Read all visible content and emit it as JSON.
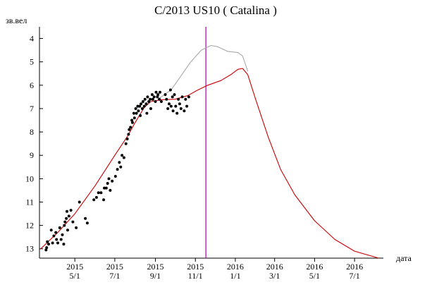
{
  "chart_data": {
    "type": "line",
    "title": "C/2013 US10 ( Catalina )",
    "ylabel": "зв.вел",
    "xlabel": "дата",
    "y_axis": {
      "min": 3.5,
      "max": 13.4,
      "inverted": true,
      "ticks": [
        4,
        5,
        6,
        7,
        8,
        9,
        10,
        11,
        12,
        13
      ]
    },
    "x_axis": {
      "min": "2015-03-08",
      "max": "2016-08-14",
      "ticks": [
        {
          "date": "2015-05-01",
          "year": "2015",
          "md": "5/1"
        },
        {
          "date": "2015-07-01",
          "year": "2015",
          "md": "7/1"
        },
        {
          "date": "2015-09-01",
          "year": "2015",
          "md": "9/1"
        },
        {
          "date": "2015-11-01",
          "year": "2015",
          "md": "11/1"
        },
        {
          "date": "2016-01-01",
          "year": "2016",
          "md": "1/1"
        },
        {
          "date": "2016-03-01",
          "year": "2016",
          "md": "3/1"
        },
        {
          "date": "2016-05-01",
          "year": "2016",
          "md": "5/1"
        },
        {
          "date": "2016-07-01",
          "year": "2016",
          "md": "7/1"
        }
      ]
    },
    "marker_line": {
      "date": "2015-11-17",
      "color": "#b000b0"
    },
    "series": [
      {
        "color": "#cc0000",
        "style": "line",
        "points": [
          [
            "2015-03-10",
            13.0
          ],
          [
            "2015-04-05",
            12.3
          ],
          [
            "2015-05-01",
            11.5
          ],
          [
            "2015-06-01",
            10.3
          ],
          [
            "2015-07-01",
            9.0
          ],
          [
            "2015-07-20",
            8.2
          ],
          [
            "2015-08-01",
            7.6
          ],
          [
            "2015-08-15",
            6.95
          ],
          [
            "2015-08-25",
            6.7
          ],
          [
            "2015-09-10",
            6.62
          ],
          [
            "2015-10-01",
            6.6
          ],
          [
            "2015-10-20",
            6.45
          ],
          [
            "2015-11-05",
            6.2
          ],
          [
            "2015-11-20",
            6.0
          ],
          [
            "2015-12-10",
            5.8
          ],
          [
            "2015-12-25",
            5.55
          ],
          [
            "2016-01-05",
            5.32
          ],
          [
            "2016-01-12",
            5.28
          ],
          [
            "2016-01-20",
            5.55
          ],
          [
            "2016-02-01",
            6.6
          ],
          [
            "2016-02-20",
            8.2
          ],
          [
            "2016-03-10",
            9.6
          ],
          [
            "2016-04-01",
            10.7
          ],
          [
            "2016-05-01",
            11.8
          ],
          [
            "2016-06-01",
            12.6
          ],
          [
            "2016-07-01",
            13.1
          ],
          [
            "2016-08-07",
            13.4
          ]
        ]
      },
      {
        "color": "#a8a8a8",
        "style": "line",
        "points": [
          [
            "2015-09-05",
            6.6
          ],
          [
            "2015-09-25",
            6.2
          ],
          [
            "2015-10-10",
            5.6
          ],
          [
            "2015-10-25",
            5.0
          ],
          [
            "2015-11-10",
            4.5
          ],
          [
            "2015-11-25",
            4.3
          ],
          [
            "2015-12-05",
            4.35
          ],
          [
            "2015-12-20",
            4.55
          ],
          [
            "2016-01-05",
            4.6
          ],
          [
            "2016-01-12",
            4.75
          ],
          [
            "2016-01-20",
            5.4
          ]
        ]
      },
      {
        "color": "#000000",
        "style": "dots",
        "points": [
          [
            "2015-03-18",
            13.05
          ],
          [
            "2015-03-19",
            12.95
          ],
          [
            "2015-03-20",
            12.7
          ],
          [
            "2015-03-22",
            12.8
          ],
          [
            "2015-03-26",
            12.2
          ],
          [
            "2015-03-28",
            12.75
          ],
          [
            "2015-03-30",
            12.45
          ],
          [
            "2015-04-02",
            12.3
          ],
          [
            "2015-04-03",
            12.6
          ],
          [
            "2015-04-05",
            12.75
          ],
          [
            "2015-04-08",
            12.1
          ],
          [
            "2015-04-10",
            12.6
          ],
          [
            "2015-04-12",
            12.4
          ],
          [
            "2015-04-14",
            12.8
          ],
          [
            "2015-04-15",
            12.0
          ],
          [
            "2015-04-16",
            11.85
          ],
          [
            "2015-04-18",
            11.7
          ],
          [
            "2015-04-19",
            11.4
          ],
          [
            "2015-04-20",
            12.2
          ],
          [
            "2015-04-22",
            11.6
          ],
          [
            "2015-04-25",
            11.35
          ],
          [
            "2015-04-28",
            11.85
          ],
          [
            "2015-05-03",
            12.1
          ],
          [
            "2015-05-08",
            11.0
          ],
          [
            "2015-05-17",
            11.7
          ],
          [
            "2015-05-20",
            11.9
          ],
          [
            "2015-05-30",
            10.9
          ],
          [
            "2015-06-03",
            10.8
          ],
          [
            "2015-06-06",
            10.6
          ],
          [
            "2015-06-10",
            10.6
          ],
          [
            "2015-06-14",
            10.9
          ],
          [
            "2015-06-15",
            10.4
          ],
          [
            "2015-06-18",
            10.4
          ],
          [
            "2015-06-20",
            10.2
          ],
          [
            "2015-06-22",
            10.0
          ],
          [
            "2015-06-24",
            10.5
          ],
          [
            "2015-06-27",
            10.1
          ],
          [
            "2015-07-02",
            9.9
          ],
          [
            "2015-07-05",
            9.6
          ],
          [
            "2015-07-08",
            9.3
          ],
          [
            "2015-07-10",
            9.5
          ],
          [
            "2015-07-12",
            9.0
          ],
          [
            "2015-07-15",
            9.1
          ],
          [
            "2015-07-18",
            8.5
          ],
          [
            "2015-07-20",
            8.3
          ],
          [
            "2015-07-22",
            8.1
          ],
          [
            "2015-07-23",
            7.9
          ],
          [
            "2015-07-25",
            7.8
          ],
          [
            "2015-07-27",
            7.5
          ],
          [
            "2015-07-28",
            7.6
          ],
          [
            "2015-07-30",
            7.2
          ],
          [
            "2015-07-31",
            7.4
          ],
          [
            "2015-08-02",
            7.0
          ],
          [
            "2015-08-03",
            7.2
          ],
          [
            "2015-08-05",
            6.9
          ],
          [
            "2015-08-06",
            7.1
          ],
          [
            "2015-08-08",
            6.9
          ],
          [
            "2015-08-09",
            7.3
          ],
          [
            "2015-08-10",
            6.8
          ],
          [
            "2015-08-12",
            7.0
          ],
          [
            "2015-08-13",
            6.7
          ],
          [
            "2015-08-15",
            6.9
          ],
          [
            "2015-08-16",
            6.6
          ],
          [
            "2015-08-18",
            6.8
          ],
          [
            "2015-08-19",
            7.2
          ],
          [
            "2015-08-20",
            6.5
          ],
          [
            "2015-08-22",
            6.7
          ],
          [
            "2015-08-24",
            6.6
          ],
          [
            "2015-08-25",
            7.0
          ],
          [
            "2015-08-27",
            6.4
          ],
          [
            "2015-08-28",
            6.6
          ],
          [
            "2015-08-30",
            6.5
          ],
          [
            "2015-09-01",
            6.7
          ],
          [
            "2015-09-02",
            6.3
          ],
          [
            "2015-09-04",
            6.5
          ],
          [
            "2015-09-05",
            6.4
          ],
          [
            "2015-09-07",
            6.6
          ],
          [
            "2015-09-08",
            6.3
          ],
          [
            "2015-09-10",
            6.7
          ],
          [
            "2015-09-16",
            6.4
          ],
          [
            "2015-09-18",
            6.6
          ],
          [
            "2015-09-20",
            7.0
          ],
          [
            "2015-09-22",
            6.8
          ],
          [
            "2015-09-24",
            6.2
          ],
          [
            "2015-09-25",
            6.9
          ],
          [
            "2015-09-27",
            6.5
          ],
          [
            "2015-09-28",
            7.1
          ],
          [
            "2015-09-30",
            6.4
          ],
          [
            "2015-10-02",
            6.9
          ],
          [
            "2015-10-04",
            7.2
          ],
          [
            "2015-10-06",
            6.6
          ],
          [
            "2015-10-08",
            6.8
          ],
          [
            "2015-10-10",
            7.0
          ],
          [
            "2015-10-12",
            6.5
          ],
          [
            "2015-10-15",
            7.1
          ],
          [
            "2015-10-17",
            6.6
          ],
          [
            "2015-10-19",
            6.9
          ],
          [
            "2015-10-22",
            6.5
          ]
        ]
      }
    ]
  }
}
